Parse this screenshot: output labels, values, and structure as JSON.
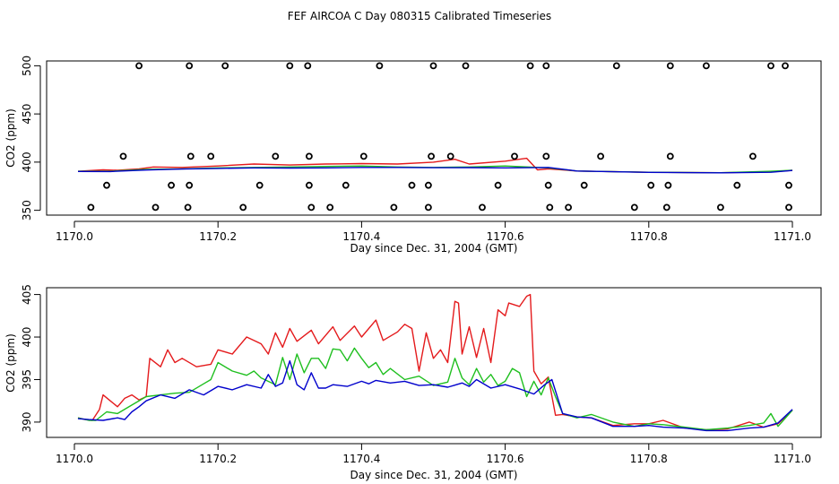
{
  "title": "FEF AIRCOA C  Day 080315  Calibrated Timeseries",
  "colors": {
    "series_red": "#e41a1c",
    "series_green": "#1fbf1f",
    "series_blue": "#0000cc",
    "axis": "#000000"
  },
  "chart_data": [
    {
      "type": "line",
      "panel": "top",
      "xlabel": "Day since Dec. 31, 2004 (GMT)",
      "ylabel": "CO2 (ppm)",
      "xlim": [
        1170.0,
        1171.0
      ],
      "ylim": [
        345,
        505
      ],
      "xticks": [
        1170.0,
        1170.2,
        1170.4,
        1170.6,
        1170.8,
        1171.0
      ],
      "xtick_labels": [
        "1170.0",
        "1170.2",
        "1170.4",
        "1170.6",
        "1170.8",
        "1171.0"
      ],
      "yticks": [
        350,
        400,
        450,
        500
      ],
      "ytick_labels": [
        "350",
        "400",
        "450",
        "500"
      ],
      "series": [
        {
          "name": "red",
          "color": "#e41a1c",
          "x": [
            1170.005,
            1170.04,
            1170.06,
            1170.09,
            1170.11,
            1170.15,
            1170.2,
            1170.25,
            1170.3,
            1170.35,
            1170.4,
            1170.45,
            1170.5,
            1170.53,
            1170.55,
            1170.6,
            1170.63,
            1170.645,
            1170.66,
            1170.7,
            1170.8,
            1170.9,
            1170.97,
            1171.0
          ],
          "y": [
            390.5,
            392,
            391.5,
            393,
            395,
            394.5,
            396,
            398,
            397,
            398,
            398.5,
            398,
            400,
            403,
            398,
            401,
            404,
            392,
            393,
            390.8,
            389.5,
            389,
            389.8,
            391.5
          ]
        },
        {
          "name": "green",
          "color": "#1fbf1f",
          "x": [
            1170.005,
            1170.05,
            1170.1,
            1170.15,
            1170.2,
            1170.25,
            1170.3,
            1170.35,
            1170.4,
            1170.45,
            1170.5,
            1170.55,
            1170.6,
            1170.66,
            1170.7,
            1170.8,
            1170.9,
            1170.97,
            1171.0
          ],
          "y": [
            390.5,
            390.5,
            392.5,
            393,
            394,
            394.5,
            395,
            395.5,
            396,
            395,
            394.5,
            395,
            396,
            394,
            390.8,
            389.5,
            389,
            390.5,
            391.5
          ]
        },
        {
          "name": "blue",
          "color": "#0000cc",
          "x": [
            1170.005,
            1170.05,
            1170.1,
            1170.15,
            1170.2,
            1170.25,
            1170.3,
            1170.35,
            1170.4,
            1170.45,
            1170.5,
            1170.55,
            1170.6,
            1170.66,
            1170.7,
            1170.8,
            1170.9,
            1170.97,
            1171.0
          ],
          "y": [
            390.3,
            390.2,
            391.8,
            392.8,
            393.5,
            394,
            393.8,
            394,
            394.5,
            394.5,
            394.2,
            394.3,
            394,
            394.5,
            390.8,
            389.4,
            388.9,
            389.5,
            391.3
          ]
        }
      ],
      "markers": {
        "symbol": "open circle",
        "x": [
          1170.09,
          1170.16,
          1170.21,
          1170.3,
          1170.325,
          1170.425,
          1170.5,
          1170.545,
          1170.635,
          1170.657,
          1170.755,
          1170.83,
          1170.88,
          1170.97,
          1170.99,
          1170.068,
          1170.162,
          1170.19,
          1170.28,
          1170.327,
          1170.403,
          1170.497,
          1170.524,
          1170.613,
          1170.657,
          1170.733,
          1170.83,
          1170.945,
          1170.045,
          1170.135,
          1170.16,
          1170.258,
          1170.327,
          1170.378,
          1170.47,
          1170.493,
          1170.59,
          1170.66,
          1170.71,
          1170.803,
          1170.827,
          1170.923,
          1170.995,
          1170.023,
          1170.113,
          1170.158,
          1170.235,
          1170.33,
          1170.356,
          1170.445,
          1170.493,
          1170.568,
          1170.662,
          1170.688,
          1170.78,
          1170.825,
          1170.9,
          1170.995
        ],
        "y": [
          500,
          500,
          500,
          500,
          500,
          500,
          500,
          500,
          500,
          500,
          500,
          500,
          500,
          500,
          500,
          406,
          406,
          406,
          406,
          406,
          406,
          406,
          406,
          406,
          406,
          406,
          406,
          406,
          376,
          376,
          376,
          376,
          376,
          376,
          376,
          376,
          376,
          376,
          376,
          376,
          376,
          376,
          376,
          353,
          353,
          353,
          353,
          353,
          353,
          353,
          353,
          353,
          353,
          353,
          353,
          353,
          353,
          353
        ]
      }
    },
    {
      "type": "line",
      "panel": "bottom",
      "xlabel": "Day since Dec. 31, 2004 (GMT)",
      "ylabel": "CO2 (ppm)",
      "xlim": [
        1170.0,
        1171.0
      ],
      "ylim": [
        388.2,
        405.8
      ],
      "xticks": [
        1170.0,
        1170.2,
        1170.4,
        1170.6,
        1170.8,
        1171.0
      ],
      "xtick_labels": [
        "1170.0",
        "1170.2",
        "1170.4",
        "1170.6",
        "1170.8",
        "1171.0"
      ],
      "yticks": [
        390,
        395,
        400,
        405
      ],
      "ytick_labels": [
        "390",
        "395",
        "400",
        "405"
      ],
      "series": [
        {
          "name": "red",
          "color": "#e41a1c",
          "x": [
            1170.005,
            1170.015,
            1170.025,
            1170.035,
            1170.04,
            1170.05,
            1170.06,
            1170.07,
            1170.08,
            1170.09,
            1170.1,
            1170.105,
            1170.12,
            1170.13,
            1170.14,
            1170.15,
            1170.17,
            1170.19,
            1170.2,
            1170.22,
            1170.24,
            1170.26,
            1170.27,
            1170.28,
            1170.29,
            1170.3,
            1170.31,
            1170.33,
            1170.34,
            1170.36,
            1170.37,
            1170.39,
            1170.4,
            1170.42,
            1170.43,
            1170.45,
            1170.46,
            1170.47,
            1170.48,
            1170.49,
            1170.5,
            1170.51,
            1170.52,
            1170.53,
            1170.535,
            1170.54,
            1170.55,
            1170.56,
            1170.57,
            1170.58,
            1170.59,
            1170.6,
            1170.605,
            1170.62,
            1170.63,
            1170.635,
            1170.64,
            1170.65,
            1170.66,
            1170.67,
            1170.68,
            1170.7,
            1170.72,
            1170.75,
            1170.78,
            1170.8,
            1170.82,
            1170.85,
            1170.88,
            1170.91,
            1170.94,
            1170.96,
            1170.98,
            1171.0
          ],
          "y": [
            390.5,
            390.3,
            390.2,
            391.5,
            393.2,
            392.5,
            391.8,
            392.8,
            393.2,
            392.6,
            393.0,
            397.5,
            396.5,
            398.5,
            397.0,
            397.5,
            396.5,
            396.8,
            398.5,
            398.0,
            400.0,
            399.2,
            398.0,
            400.5,
            398.8,
            401.0,
            399.5,
            400.8,
            399.2,
            401.2,
            399.6,
            401.3,
            400.0,
            402.0,
            399.6,
            400.6,
            401.5,
            401.0,
            396.0,
            400.5,
            397.5,
            398.5,
            397.0,
            404.2,
            404.0,
            398.0,
            401.2,
            397.6,
            401.0,
            397.0,
            403.2,
            402.5,
            404.0,
            403.6,
            404.8,
            405.0,
            396.0,
            394.5,
            395.3,
            390.8,
            390.9,
            390.6,
            390.5,
            389.6,
            389.8,
            389.8,
            390.2,
            389.3,
            389.1,
            389.2,
            390.0,
            389.4,
            389.8,
            391.4
          ]
        },
        {
          "name": "green",
          "color": "#1fbf1f",
          "x": [
            1170.005,
            1170.02,
            1170.03,
            1170.045,
            1170.06,
            1170.08,
            1170.1,
            1170.12,
            1170.14,
            1170.16,
            1170.18,
            1170.19,
            1170.2,
            1170.22,
            1170.24,
            1170.25,
            1170.26,
            1170.28,
            1170.29,
            1170.3,
            1170.31,
            1170.32,
            1170.33,
            1170.34,
            1170.35,
            1170.36,
            1170.37,
            1170.38,
            1170.39,
            1170.4,
            1170.41,
            1170.42,
            1170.43,
            1170.44,
            1170.46,
            1170.48,
            1170.5,
            1170.52,
            1170.53,
            1170.54,
            1170.55,
            1170.56,
            1170.57,
            1170.58,
            1170.59,
            1170.6,
            1170.61,
            1170.62,
            1170.63,
            1170.64,
            1170.65,
            1170.66,
            1170.67,
            1170.68,
            1170.7,
            1170.72,
            1170.75,
            1170.78,
            1170.8,
            1170.82,
            1170.85,
            1170.88,
            1170.91,
            1170.94,
            1170.96,
            1170.97,
            1170.98,
            1171.0
          ],
          "y": [
            390.5,
            390.2,
            390.2,
            391.2,
            391.0,
            392.0,
            393.0,
            393.2,
            393.4,
            393.5,
            394.5,
            395.0,
            397.0,
            396.0,
            395.5,
            396.0,
            395.2,
            394.4,
            397.6,
            395.0,
            398.0,
            395.8,
            397.5,
            397.5,
            396.3,
            398.6,
            398.5,
            397.2,
            398.7,
            397.5,
            396.4,
            397.0,
            395.6,
            396.3,
            395.0,
            395.4,
            394.3,
            394.7,
            397.5,
            395.2,
            394.4,
            396.3,
            394.7,
            395.6,
            394.3,
            394.8,
            396.3,
            395.8,
            393.0,
            394.8,
            393.2,
            395.2,
            393.0,
            391.0,
            390.5,
            390.9,
            390.0,
            389.5,
            389.8,
            389.7,
            389.4,
            389.1,
            389.3,
            389.6,
            389.9,
            391.0,
            389.5,
            391.4
          ]
        },
        {
          "name": "blue",
          "color": "#0000cc",
          "x": [
            1170.005,
            1170.02,
            1170.04,
            1170.06,
            1170.07,
            1170.08,
            1170.09,
            1170.1,
            1170.12,
            1170.14,
            1170.16,
            1170.18,
            1170.2,
            1170.22,
            1170.24,
            1170.26,
            1170.27,
            1170.28,
            1170.29,
            1170.3,
            1170.31,
            1170.32,
            1170.33,
            1170.34,
            1170.35,
            1170.36,
            1170.38,
            1170.4,
            1170.41,
            1170.42,
            1170.44,
            1170.46,
            1170.48,
            1170.5,
            1170.52,
            1170.54,
            1170.55,
            1170.56,
            1170.58,
            1170.6,
            1170.62,
            1170.64,
            1170.655,
            1170.665,
            1170.68,
            1170.7,
            1170.72,
            1170.75,
            1170.78,
            1170.8,
            1170.82,
            1170.85,
            1170.88,
            1170.91,
            1170.94,
            1170.96,
            1170.98,
            1171.0
          ],
          "y": [
            390.4,
            390.3,
            390.2,
            390.5,
            390.3,
            391.2,
            391.8,
            392.5,
            393.2,
            392.8,
            393.8,
            393.2,
            394.2,
            393.8,
            394.4,
            394.0,
            395.6,
            394.2,
            394.6,
            397.2,
            394.4,
            393.8,
            395.8,
            394.0,
            394.0,
            394.4,
            394.2,
            394.8,
            394.5,
            394.9,
            394.6,
            394.8,
            394.3,
            394.4,
            394.1,
            394.6,
            394.2,
            395.0,
            394.0,
            394.4,
            393.9,
            393.3,
            394.4,
            395.0,
            391.0,
            390.6,
            390.5,
            389.5,
            389.5,
            389.6,
            389.4,
            389.3,
            389.0,
            389.0,
            389.3,
            389.4,
            389.9,
            391.5
          ]
        }
      ]
    }
  ]
}
